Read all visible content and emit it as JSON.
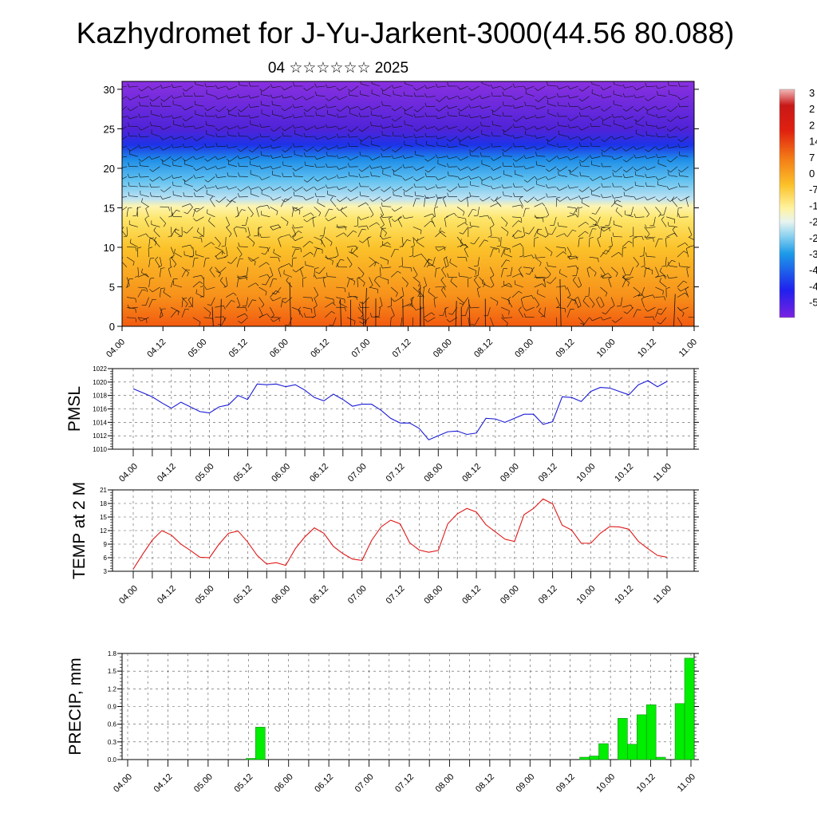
{
  "title": "Kazhydromet for J-Yu-Jarkent-3000(44.56 80.088)",
  "subtitle": "04 ☆☆☆☆☆☆ 2025",
  "colors": {
    "pmsl_line": "#1a1ad6",
    "temp_line": "#e01818",
    "precip_bar": "#00ee00",
    "precip_bar_edge": "#1a8a1a"
  },
  "time_ticks": [
    "04.00",
    "04.12",
    "05.00",
    "05.12",
    "06.00",
    "06.12",
    "07.00",
    "07.12",
    "08.00",
    "08.12",
    "09.00",
    "09.12",
    "10.00",
    "10.12",
    "11.00"
  ],
  "cross_section": {
    "y_ticks": [
      "0",
      "5",
      "10",
      "15",
      "20",
      "25",
      "30"
    ],
    "y_range": [
      0,
      31
    ],
    "colorbar_labels": [
      "3",
      "2",
      "2",
      "14",
      "7",
      "0",
      "-7",
      "-1",
      "-2",
      "-2",
      "-3",
      "-4",
      "-4",
      "-5"
    ]
  },
  "chart_data": [
    {
      "type": "line",
      "ylabel": "PMSL",
      "ylim": [
        1010,
        1022
      ],
      "y_ticks": [
        "1010",
        "1012",
        "1014",
        "1016",
        "1018",
        "1020",
        "1022"
      ],
      "series": [
        {
          "x": [
            0,
            1,
            2,
            3,
            4,
            5,
            6,
            7,
            8,
            9,
            10,
            11,
            12,
            13,
            14,
            15,
            16,
            17,
            18,
            19,
            20,
            21,
            22,
            23,
            24,
            25,
            26,
            27,
            28,
            29,
            30,
            31,
            32,
            33,
            34,
            35,
            36,
            37,
            38,
            39,
            40,
            41,
            42,
            43,
            44,
            45,
            46,
            47,
            48,
            49,
            50,
            51,
            52,
            53,
            54,
            55,
            56
          ],
          "values": [
            1019.0,
            1018.4,
            1017.8,
            1016.9,
            1016.1,
            1017.0,
            1016.3,
            1015.6,
            1015.4,
            1016.3,
            1016.6,
            1018.0,
            1017.4,
            1019.7,
            1019.6,
            1019.7,
            1019.3,
            1019.6,
            1018.8,
            1017.7,
            1017.2,
            1018.2,
            1017.4,
            1016.4,
            1016.7,
            1016.7,
            1015.8,
            1014.6,
            1013.9,
            1013.9,
            1013.1,
            1011.4,
            1012.0,
            1012.6,
            1012.7,
            1012.2,
            1012.4,
            1014.6,
            1014.5,
            1014.0,
            1014.6,
            1015.2,
            1015.2,
            1013.7,
            1014.1,
            1017.8,
            1017.7,
            1017.1,
            1018.6,
            1019.2,
            1019.1,
            1018.6,
            1018.1,
            1019.6,
            1020.2,
            1019.3,
            1020.1
          ]
        }
      ]
    },
    {
      "type": "line",
      "ylabel": "TEMP at 2 M",
      "ylim": [
        3,
        21
      ],
      "y_ticks": [
        "3",
        "6",
        "9",
        "12",
        "15",
        "18",
        "21"
      ],
      "series": [
        {
          "x": [
            0,
            1,
            2,
            3,
            4,
            5,
            6,
            7,
            8,
            9,
            10,
            11,
            12,
            13,
            14,
            15,
            16,
            17,
            18,
            19,
            20,
            21,
            22,
            23,
            24,
            25,
            26,
            27,
            28,
            29,
            30,
            31,
            32,
            33,
            34,
            35,
            36,
            37,
            38,
            39,
            40,
            41,
            42,
            43,
            44,
            45,
            46,
            47,
            48,
            49,
            50,
            51,
            52,
            53,
            54,
            55,
            56
          ],
          "values": [
            3.5,
            6.8,
            9.9,
            12.0,
            11.0,
            9.0,
            7.6,
            6.1,
            6.0,
            9.0,
            11.4,
            11.9,
            9.5,
            6.5,
            4.6,
            4.9,
            4.3,
            8.0,
            10.6,
            12.6,
            11.4,
            8.5,
            6.9,
            5.7,
            5.4,
            9.8,
            12.8,
            14.3,
            13.5,
            9.3,
            7.7,
            7.2,
            7.6,
            13.5,
            15.7,
            16.9,
            16.1,
            13.3,
            11.7,
            10.1,
            9.6,
            15.5,
            16.9,
            19.0,
            17.9,
            13.2,
            12.1,
            9.2,
            9.2,
            11.4,
            12.9,
            12.8,
            12.3,
            9.6,
            8.0,
            6.5,
            6.1
          ]
        }
      ]
    },
    {
      "type": "bar",
      "ylabel": "PRECIP, mm",
      "ylim": [
        0,
        1.8
      ],
      "y_ticks": [
        "0.0",
        "0.3",
        "0.6",
        "0.9",
        "1.2",
        "1.5",
        "1.8"
      ],
      "series": [
        {
          "values": [
            0,
            0,
            0,
            0,
            0,
            0,
            0,
            0,
            0,
            0,
            0,
            0,
            0,
            0.02,
            0.55,
            0,
            0,
            0,
            0,
            0,
            0,
            0,
            0,
            0,
            0,
            0,
            0,
            0,
            0,
            0,
            0,
            0,
            0,
            0,
            0,
            0,
            0,
            0,
            0,
            0,
            0,
            0,
            0,
            0,
            0,
            0,
            0,
            0,
            0.04,
            0.06,
            0.27,
            0,
            0.7,
            0.26,
            0.76,
            0.93,
            0.04,
            0,
            0.95,
            1.72
          ]
        }
      ]
    }
  ]
}
